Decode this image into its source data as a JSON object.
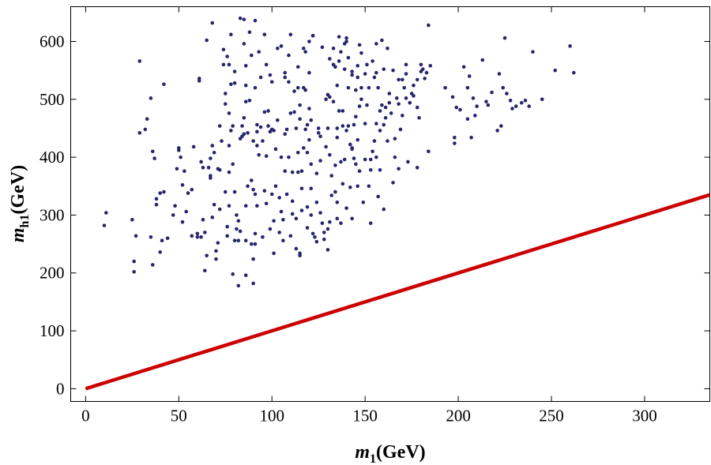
{
  "chart_data": {
    "type": "scatter",
    "xlabel": {
      "symbol": "m",
      "subscript": "1",
      "unit": "(GeV)"
    },
    "ylabel": {
      "symbol": "m",
      "subscript": "h1",
      "unit": "(GeV)"
    },
    "xlim": [
      -8,
      335
    ],
    "ylim": [
      -22,
      660
    ],
    "xticks": [
      0,
      50,
      100,
      150,
      200,
      250,
      300
    ],
    "yticks": [
      0,
      100,
      200,
      300,
      400,
      500,
      600
    ],
    "grid": false,
    "colors": {
      "points": "#26266e",
      "line": "#cc0000"
    },
    "line": {
      "slope": 1,
      "intercept": 0,
      "x": [
        0,
        335
      ]
    },
    "points": [
      [
        10,
        282
      ],
      [
        11,
        304
      ],
      [
        25,
        292
      ],
      [
        26,
        202
      ],
      [
        26,
        220
      ],
      [
        27,
        264
      ],
      [
        29,
        442
      ],
      [
        29,
        566
      ],
      [
        32,
        448
      ],
      [
        33,
        466
      ],
      [
        35,
        502
      ],
      [
        35,
        262
      ],
      [
        36,
        410
      ],
      [
        36,
        214
      ],
      [
        37,
        398
      ],
      [
        38,
        318
      ],
      [
        38,
        328
      ],
      [
        40,
        338
      ],
      [
        40,
        236
      ],
      [
        41,
        256
      ],
      [
        42,
        340
      ],
      [
        42,
        526
      ],
      [
        44,
        260
      ],
      [
        47,
        300
      ],
      [
        48,
        316
      ],
      [
        49,
        380
      ],
      [
        50,
        412
      ],
      [
        50,
        416
      ],
      [
        51,
        400
      ],
      [
        52,
        352
      ],
      [
        52,
        288
      ],
      [
        53,
        376
      ],
      [
        54,
        306
      ],
      [
        55,
        338
      ],
      [
        57,
        344
      ],
      [
        57,
        264
      ],
      [
        58,
        418
      ],
      [
        60,
        262
      ],
      [
        60,
        268
      ],
      [
        61,
        532
      ],
      [
        61,
        536
      ],
      [
        62,
        392
      ],
      [
        62,
        262
      ],
      [
        63,
        382
      ],
      [
        63,
        292
      ],
      [
        64,
        270
      ],
      [
        64,
        204
      ],
      [
        65,
        230
      ],
      [
        65,
        602
      ],
      [
        66,
        382
      ],
      [
        67,
        368
      ],
      [
        67,
        398
      ],
      [
        67,
        364
      ],
      [
        68,
        632
      ],
      [
        68,
        420
      ],
      [
        68,
        296
      ],
      [
        69,
        408
      ],
      [
        69,
        318
      ],
      [
        70,
        224
      ],
      [
        70,
        238
      ],
      [
        71,
        252
      ],
      [
        71,
        380
      ],
      [
        72,
        310
      ],
      [
        72,
        454
      ],
      [
        72,
        378
      ],
      [
        73,
        428
      ],
      [
        74,
        560
      ],
      [
        74,
        586
      ],
      [
        75,
        510
      ],
      [
        75,
        492
      ],
      [
        75,
        340
      ],
      [
        76,
        264
      ],
      [
        76,
        280
      ],
      [
        76,
        574
      ],
      [
        77,
        476
      ],
      [
        77,
        420
      ],
      [
        77,
        374
      ],
      [
        77,
        316
      ],
      [
        77,
        560
      ],
      [
        78,
        612
      ],
      [
        78,
        446
      ],
      [
        78,
        526
      ],
      [
        79,
        454
      ],
      [
        79,
        388
      ],
      [
        79,
        198
      ],
      [
        80,
        256
      ],
      [
        80,
        340
      ],
      [
        80,
        528
      ],
      [
        80,
        548
      ],
      [
        81,
        300
      ],
      [
        81,
        276
      ],
      [
        82,
        290
      ],
      [
        82,
        256
      ],
      [
        82,
        178
      ],
      [
        83,
        640
      ],
      [
        83,
        272
      ],
      [
        83,
        432
      ],
      [
        84,
        454
      ],
      [
        84,
        436
      ],
      [
        85,
        440
      ],
      [
        85,
        468
      ],
      [
        85,
        596
      ],
      [
        85,
        638
      ],
      [
        86,
        256
      ],
      [
        86,
        316
      ],
      [
        86,
        196
      ],
      [
        86,
        496
      ],
      [
        86,
        524
      ],
      [
        86,
        558
      ],
      [
        87,
        442
      ],
      [
        87,
        350
      ],
      [
        88,
        616
      ],
      [
        88,
        498
      ],
      [
        89,
        576
      ],
      [
        89,
        250
      ],
      [
        89,
        360
      ],
      [
        90,
        182
      ],
      [
        90,
        344
      ],
      [
        90,
        224
      ],
      [
        90,
        428
      ],
      [
        91,
        636
      ],
      [
        91,
        520
      ],
      [
        91,
        250
      ],
      [
        91,
        336
      ],
      [
        91,
        268
      ],
      [
        92,
        456
      ],
      [
        92,
        420
      ],
      [
        92,
        316
      ],
      [
        92,
        444
      ],
      [
        93,
        582
      ],
      [
        93,
        404
      ],
      [
        94,
        452
      ],
      [
        94,
        538
      ],
      [
        95,
        262
      ],
      [
        95,
        428
      ],
      [
        96,
        612
      ],
      [
        96,
        478
      ],
      [
        96,
        342
      ],
      [
        97,
        560
      ],
      [
        97,
        320
      ],
      [
        97,
        402
      ],
      [
        98,
        454
      ],
      [
        98,
        480
      ],
      [
        99,
        542
      ],
      [
        99,
        276
      ],
      [
        99,
        444
      ],
      [
        100,
        448
      ],
      [
        100,
        530
      ],
      [
        100,
        336
      ],
      [
        101,
        446
      ],
      [
        101,
        290
      ],
      [
        101,
        234
      ],
      [
        102,
        350
      ],
      [
        102,
        414
      ],
      [
        103,
        588
      ],
      [
        103,
        464
      ],
      [
        104,
        270
      ],
      [
        104,
        330
      ],
      [
        105,
        592
      ],
      [
        105,
        400
      ],
      [
        105,
        306
      ],
      [
        106,
        292
      ],
      [
        106,
        256
      ],
      [
        107,
        546
      ],
      [
        107,
        538
      ],
      [
        107,
        376
      ],
      [
        107,
        440
      ],
      [
        108,
        336
      ],
      [
        108,
        448
      ],
      [
        109,
        576
      ],
      [
        109,
        530
      ],
      [
        109,
        400
      ],
      [
        110,
        612
      ],
      [
        110,
        476
      ],
      [
        110,
        264
      ],
      [
        111,
        324
      ],
      [
        111,
        302
      ],
      [
        111,
        374
      ],
      [
        112,
        514
      ],
      [
        112,
        478
      ],
      [
        113,
        450
      ],
      [
        113,
        294
      ],
      [
        113,
        242
      ],
      [
        114,
        556
      ],
      [
        114,
        520
      ],
      [
        114,
        408
      ],
      [
        114,
        374
      ],
      [
        115,
        466
      ],
      [
        115,
        490
      ],
      [
        115,
        234
      ],
      [
        115,
        230
      ],
      [
        116,
        376
      ],
      [
        116,
        346
      ],
      [
        116,
        308
      ],
      [
        117,
        588
      ],
      [
        117,
        520
      ],
      [
        117,
        416
      ],
      [
        118,
        582
      ],
      [
        118,
        516
      ],
      [
        118,
        448
      ],
      [
        119,
        456
      ],
      [
        119,
        408
      ],
      [
        119,
        314
      ],
      [
        119,
        278
      ],
      [
        120,
        600
      ],
      [
        120,
        546
      ],
      [
        120,
        484
      ],
      [
        120,
        430
      ],
      [
        121,
        464
      ],
      [
        121,
        388
      ],
      [
        121,
        346
      ],
      [
        121,
        300
      ],
      [
        122,
        610
      ],
      [
        122,
        610
      ],
      [
        122,
        268
      ],
      [
        123,
        262
      ],
      [
        124,
        254
      ],
      [
        124,
        372
      ],
      [
        124,
        322
      ],
      [
        125,
        450
      ],
      [
        125,
        442
      ],
      [
        126,
        436
      ],
      [
        126,
        394
      ],
      [
        126,
        304
      ],
      [
        127,
        590
      ],
      [
        127,
        286
      ],
      [
        128,
        270
      ],
      [
        128,
        258
      ],
      [
        129,
        500
      ],
      [
        129,
        418
      ],
      [
        130,
        508
      ],
      [
        130,
        450
      ],
      [
        130,
        276
      ],
      [
        130,
        240
      ],
      [
        131,
        570
      ],
      [
        131,
        504
      ],
      [
        131,
        404
      ],
      [
        131,
        288
      ],
      [
        132,
        368
      ],
      [
        132,
        334
      ],
      [
        133,
        588
      ],
      [
        133,
        560
      ],
      [
        133,
        496
      ],
      [
        134,
        556
      ],
      [
        134,
        386
      ],
      [
        134,
        340
      ],
      [
        135,
        524
      ],
      [
        135,
        450
      ],
      [
        135,
        434
      ],
      [
        135,
        322
      ],
      [
        135,
        294
      ],
      [
        136,
        608
      ],
      [
        136,
        566
      ],
      [
        136,
        480
      ],
      [
        137,
        582
      ],
      [
        137,
        392
      ],
      [
        137,
        286
      ],
      [
        138,
        480
      ],
      [
        138,
        454
      ],
      [
        138,
        354
      ],
      [
        139,
        596
      ],
      [
        139,
        552
      ],
      [
        139,
        396
      ],
      [
        140,
        600
      ],
      [
        140,
        606
      ],
      [
        140,
        446
      ],
      [
        140,
        312
      ],
      [
        141,
        572
      ],
      [
        141,
        520
      ],
      [
        141,
        454
      ],
      [
        142,
        422
      ],
      [
        142,
        348
      ],
      [
        143,
        542
      ],
      [
        143,
        548
      ],
      [
        143,
        416
      ],
      [
        143,
        414
      ],
      [
        143,
        294
      ],
      [
        144,
        456
      ],
      [
        144,
        398
      ],
      [
        145,
        516
      ],
      [
        145,
        470
      ],
      [
        145,
        388
      ],
      [
        146,
        558
      ],
      [
        146,
        538
      ],
      [
        146,
        430
      ],
      [
        146,
        350
      ],
      [
        147,
        594
      ],
      [
        147,
        488
      ],
      [
        147,
        376
      ],
      [
        148,
        580
      ],
      [
        148,
        520
      ],
      [
        148,
        500
      ],
      [
        149,
        322
      ],
      [
        150,
        544
      ],
      [
        150,
        458
      ],
      [
        150,
        396
      ],
      [
        151,
        560
      ],
      [
        151,
        490
      ],
      [
        152,
        520
      ],
      [
        152,
        350
      ],
      [
        153,
        396
      ],
      [
        153,
        378
      ],
      [
        153,
        286
      ],
      [
        154,
        566
      ],
      [
        154,
        410
      ],
      [
        155,
        538
      ],
      [
        155,
        428
      ],
      [
        156,
        596
      ],
      [
        156,
        546
      ],
      [
        156,
        458
      ],
      [
        156,
        400
      ],
      [
        157,
        520
      ],
      [
        157,
        332
      ],
      [
        158,
        480
      ],
      [
        158,
        446
      ],
      [
        158,
        378
      ],
      [
        159,
        602
      ],
      [
        159,
        490
      ],
      [
        160,
        552
      ],
      [
        160,
        456
      ],
      [
        160,
        310
      ],
      [
        161,
        486
      ],
      [
        161,
        468
      ],
      [
        162,
        588
      ],
      [
        162,
        428
      ],
      [
        163,
        510
      ],
      [
        163,
        494
      ],
      [
        164,
        476
      ],
      [
        165,
        550
      ],
      [
        165,
        356
      ],
      [
        166,
        432
      ],
      [
        166,
        400
      ],
      [
        167,
        502
      ],
      [
        168,
        534
      ],
      [
        168,
        492
      ],
      [
        168,
        380
      ],
      [
        169,
        448
      ],
      [
        170,
        472
      ],
      [
        170,
        534
      ],
      [
        171,
        520
      ],
      [
        172,
        560
      ],
      [
        172,
        544
      ],
      [
        172,
        502
      ],
      [
        173,
        392
      ],
      [
        174,
        494
      ],
      [
        175,
        510
      ],
      [
        176,
        524
      ],
      [
        176,
        506
      ],
      [
        178,
        486
      ],
      [
        178,
        534
      ],
      [
        178,
        382
      ],
      [
        179,
        468
      ],
      [
        180,
        548
      ],
      [
        180,
        560
      ],
      [
        181,
        552
      ],
      [
        182,
        536
      ],
      [
        183,
        546
      ],
      [
        184,
        628
      ],
      [
        184,
        410
      ],
      [
        185,
        558
      ],
      [
        193,
        520
      ],
      [
        197,
        504
      ],
      [
        198,
        434
      ],
      [
        198,
        424
      ],
      [
        199,
        486
      ],
      [
        201,
        482
      ],
      [
        203,
        556
      ],
      [
        205,
        466
      ],
      [
        205,
        520
      ],
      [
        206,
        540
      ],
      [
        207,
        434
      ],
      [
        208,
        502
      ],
      [
        209,
        472
      ],
      [
        210,
        488
      ],
      [
        213,
        568
      ],
      [
        215,
        496
      ],
      [
        216,
        490
      ],
      [
        218,
        512
      ],
      [
        221,
        446
      ],
      [
        222,
        544
      ],
      [
        223,
        454
      ],
      [
        224,
        520
      ],
      [
        225,
        606
      ],
      [
        226,
        510
      ],
      [
        228,
        498
      ],
      [
        229,
        484
      ],
      [
        231,
        488
      ],
      [
        234,
        494
      ],
      [
        236,
        498
      ],
      [
        238,
        488
      ],
      [
        240,
        582
      ],
      [
        245,
        500
      ],
      [
        252,
        550
      ],
      [
        260,
        592
      ],
      [
        262,
        546
      ]
    ]
  }
}
